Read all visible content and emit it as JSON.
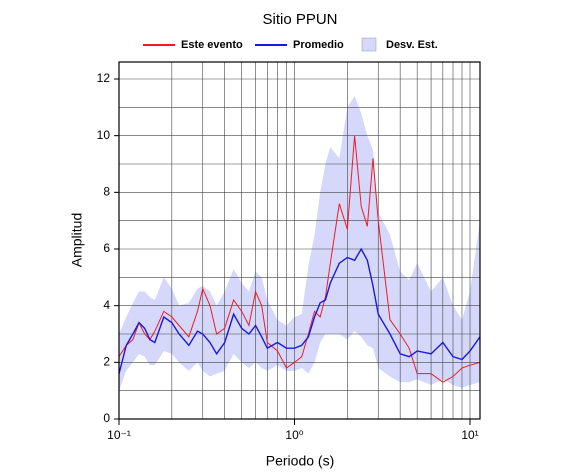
{
  "chart_data": {
    "type": "line",
    "title": "Sitio PPUN",
    "x_label": "Periodo (s)",
    "y_label": "Amplitud",
    "x_scale": "log",
    "grid": true,
    "legend": "top",
    "x": [
      0.1,
      0.11,
      0.12,
      0.13,
      0.14,
      0.15,
      0.16,
      0.18,
      0.2,
      0.22,
      0.25,
      0.28,
      0.3,
      0.33,
      0.36,
      0.4,
      0.45,
      0.5,
      0.55,
      0.6,
      0.65,
      0.7,
      0.8,
      0.9,
      1.0,
      1.1,
      1.2,
      1.3,
      1.4,
      1.5,
      1.6,
      1.8,
      2.0,
      2.2,
      2.4,
      2.6,
      2.8,
      3.0,
      3.5,
      4.0,
      4.5,
      5.0,
      6.0,
      7.0,
      8.0,
      9.0,
      10,
      11.4
    ],
    "series": [
      {
        "name": "Este evento",
        "color": "#ee1c25",
        "values": [
          2.2,
          2.6,
          2.8,
          3.4,
          3.0,
          2.8,
          3.1,
          3.8,
          3.6,
          3.3,
          2.9,
          3.8,
          4.6,
          4.0,
          3.0,
          3.2,
          4.2,
          3.8,
          3.3,
          4.5,
          4.0,
          2.7,
          2.4,
          1.8,
          2.0,
          2.2,
          3.0,
          3.8,
          3.6,
          4.3,
          5.5,
          7.6,
          6.7,
          10.0,
          7.5,
          6.8,
          9.2,
          7.0,
          3.5,
          3.0,
          2.5,
          1.6,
          1.6,
          1.3,
          1.5,
          1.8,
          1.9,
          2.0
        ]
      },
      {
        "name": "Promedio",
        "color": "#1a1adb",
        "values": [
          1.6,
          2.6,
          3.0,
          3.4,
          3.2,
          2.8,
          2.7,
          3.6,
          3.4,
          3.0,
          2.6,
          3.1,
          3.0,
          2.7,
          2.3,
          2.7,
          3.7,
          3.2,
          3.0,
          3.3,
          2.9,
          2.5,
          2.7,
          2.5,
          2.5,
          2.6,
          2.9,
          3.6,
          4.1,
          4.2,
          4.8,
          5.5,
          5.7,
          5.6,
          6.0,
          5.6,
          4.7,
          3.7,
          3.0,
          2.3,
          2.2,
          2.4,
          2.3,
          2.7,
          2.2,
          2.1,
          2.4,
          2.9
        ]
      },
      {
        "name": "Desv. Est.",
        "color": "#d5d8fa",
        "kind": "band",
        "upper": [
          3.0,
          3.6,
          4.1,
          4.5,
          4.5,
          4.3,
          4.2,
          5.0,
          4.6,
          4.0,
          4.1,
          4.6,
          4.7,
          4.5,
          4.0,
          4.5,
          5.3,
          4.8,
          4.5,
          5.2,
          5.0,
          4.2,
          3.5,
          3.3,
          3.6,
          3.7,
          5.4,
          6.5,
          8.0,
          9.0,
          9.6,
          9.2,
          11.0,
          11.4,
          10.8,
          10.0,
          9.5,
          7.3,
          6.5,
          5.2,
          4.9,
          5.5,
          4.5,
          5.0,
          4.0,
          3.5,
          4.5,
          7.0
        ],
        "lower": [
          1.0,
          1.7,
          2.0,
          2.3,
          2.2,
          1.9,
          1.9,
          2.4,
          2.3,
          2.0,
          1.7,
          2.0,
          1.7,
          1.5,
          1.6,
          1.7,
          2.3,
          2.0,
          1.8,
          2.0,
          1.8,
          1.7,
          1.9,
          1.7,
          1.7,
          1.8,
          1.6,
          2.0,
          2.7,
          3.0,
          3.0,
          3.0,
          2.8,
          3.1,
          2.9,
          2.6,
          2.5,
          1.8,
          1.5,
          1.3,
          1.3,
          1.4,
          1.2,
          1.4,
          1.2,
          1.1,
          1.2,
          1.3
        ]
      }
    ],
    "xlim": [
      0.1,
      11.4
    ],
    "ylim": [
      0,
      12.6
    ],
    "xticks": [
      {
        "value": 0.1,
        "label": "10⁻¹"
      },
      {
        "value": 1,
        "label": "10⁰"
      },
      {
        "value": 10,
        "label": "10¹"
      }
    ],
    "xgrid": [
      0.2,
      0.3,
      0.4,
      0.5,
      0.6,
      0.7,
      0.8,
      0.9,
      1,
      2,
      3,
      4,
      5,
      6,
      7,
      8,
      9,
      10
    ],
    "yticks": [
      0,
      2,
      4,
      6,
      8,
      10,
      12
    ],
    "ygrid": [
      1,
      2,
      3,
      4,
      5,
      6,
      7,
      8,
      9,
      10,
      11,
      12
    ]
  }
}
